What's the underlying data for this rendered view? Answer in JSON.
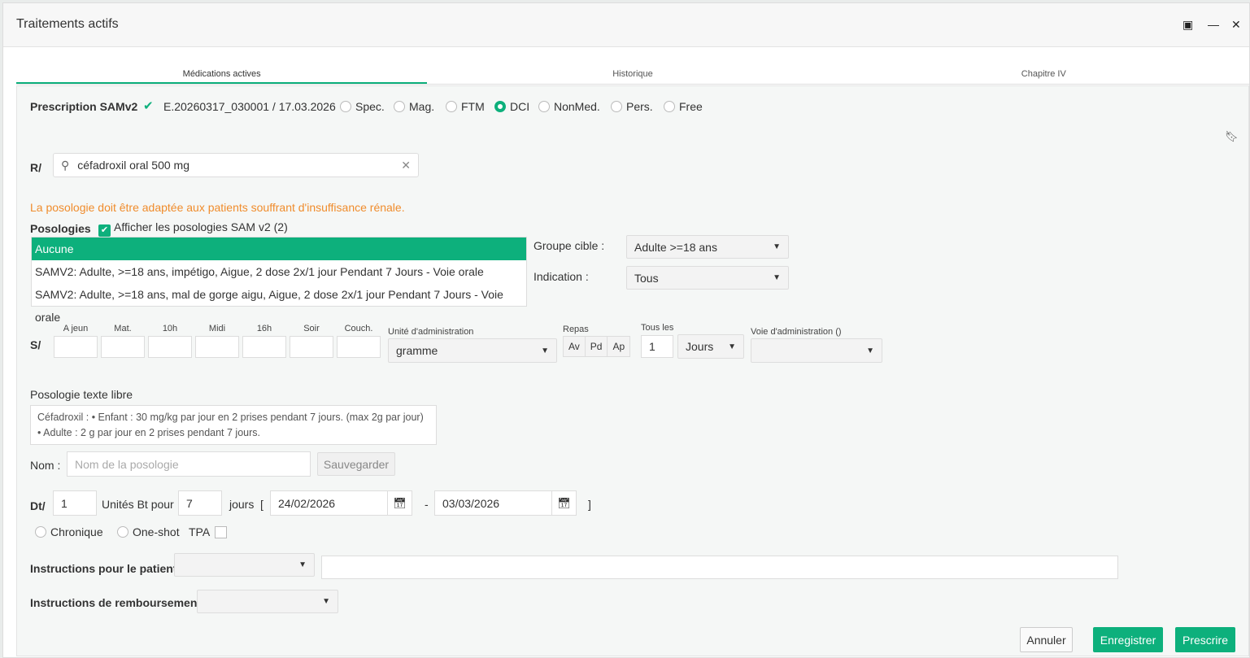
{
  "window": {
    "title": "Traitements actifs"
  },
  "tabs": [
    {
      "label": "Médications actives"
    },
    {
      "label": "Historique"
    },
    {
      "label": "Chapitre IV"
    }
  ],
  "prescription": {
    "label": "Prescription SAMv2",
    "id": "E.20260317_030001 / 17.03.2026",
    "types": [
      "Spec.",
      "Mag.",
      "FTM",
      "DCI",
      "NonMed.",
      "Pers.",
      "Free"
    ],
    "selected": "DCI"
  },
  "search": {
    "label": "R/",
    "value": "céfadroxil oral 500 mg"
  },
  "warning": "La posologie doit être adaptée aux patients souffrant d'insuffisance rénale.",
  "warning_color": "#f08c2c",
  "posologies": {
    "label": "Posologies",
    "checkbox_label": "Afficher les posologies SAM v2 (2)",
    "checked": true,
    "items": [
      "Aucune",
      "SAMV2: Adulte, >=18 ans, impétigo, Aigue, 2 dose 2x/1 jour Pendant 7 Jours - Voie orale",
      "SAMV2: Adulte, >=18 ans, mal de gorge aigu, Aigue, 2 dose 2x/1 jour Pendant 7 Jours - Voie orale"
    ]
  },
  "groupe": {
    "label": "Groupe cible :",
    "value": "Adulte >=18 ans"
  },
  "indication": {
    "label": "Indication :",
    "value": "Tous"
  },
  "schedule": {
    "label": "S/",
    "slots": [
      "A jeun",
      "Mat.",
      "10h",
      "Midi",
      "16h",
      "Soir",
      "Couch."
    ],
    "unit_label": "Unité d'administration",
    "unit_value": "gramme",
    "repas_label": "Repas",
    "repas": [
      "Av",
      "Pd",
      "Ap"
    ],
    "tous_les_label": "Tous les",
    "tous_les_value": "1",
    "period": "Jours",
    "voie_label": "Voie d'administration ()"
  },
  "free_text": {
    "label": "Posologie texte libre",
    "value": "Céfadroxil : • Enfant : 30 mg/kg par jour en 2 prises pendant 7 jours. (max 2g par jour) • Adulte : 2 g par jour en 2 prises pendant 7 jours."
  },
  "nom": {
    "label": "Nom :",
    "placeholder": "Nom de la posologie",
    "save": "Sauvegarder"
  },
  "duration": {
    "label": "Dt/",
    "units": "1",
    "units_label": "Unités Bt pour",
    "days": "7",
    "days_label": "jours",
    "open": "[",
    "start": "24/02/2026",
    "dash": "-",
    "end": "03/03/2026",
    "close": "]"
  },
  "options": {
    "chronique": "Chronique",
    "oneshot": "One-shot",
    "tpa": "TPA"
  },
  "instructions_patient": {
    "label": "Instructions pour le patient"
  },
  "instructions_remb": {
    "label": "Instructions de remboursement"
  },
  "buttons": {
    "cancel": "Annuler",
    "save": "Enregistrer",
    "prescribe": "Prescrire"
  },
  "accent": "#0db07c"
}
